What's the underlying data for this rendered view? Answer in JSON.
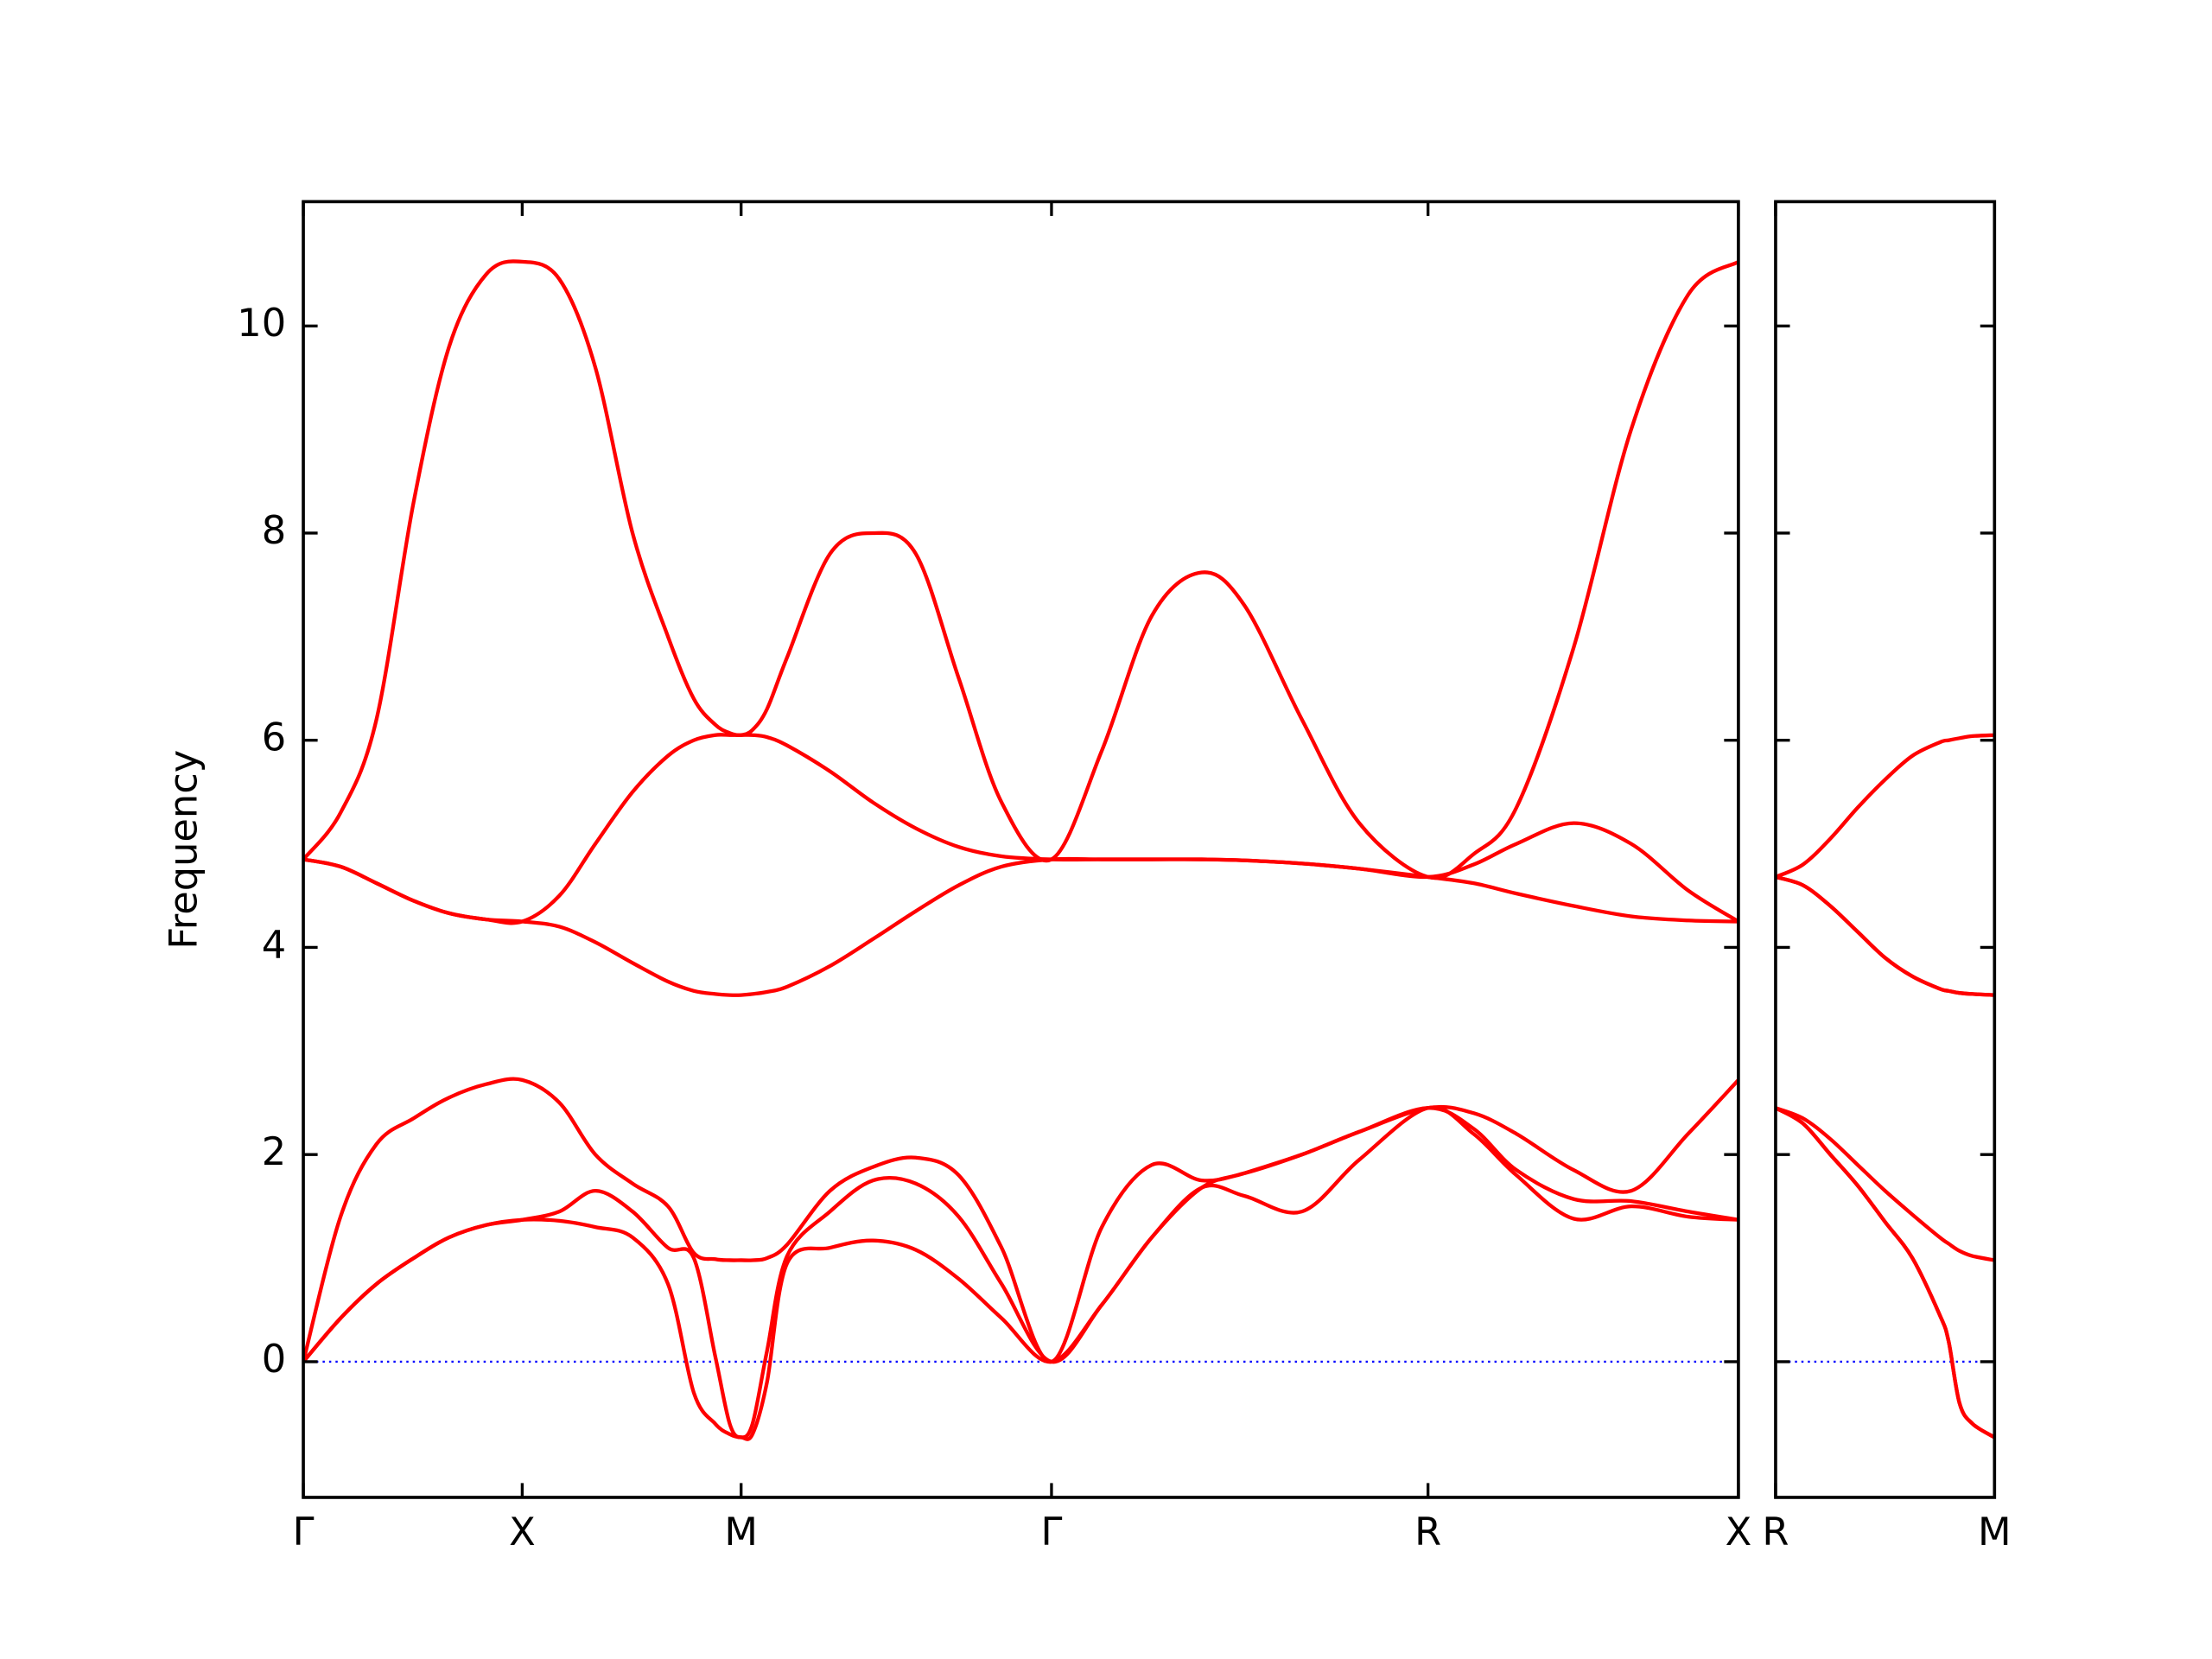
{
  "chart_data": [
    {
      "type": "line",
      "ylabel": "Frequency",
      "x": [
        0,
        0.085,
        0.167,
        0.252,
        0.333,
        0.418,
        0.5,
        0.585,
        0.667,
        0.752,
        0.833,
        0.892,
        0.941,
        0.974,
        1.0,
        1.026,
        1.059,
        1.105,
        1.203,
        1.301,
        1.399,
        1.497,
        1.595,
        1.709,
        1.824,
        1.938,
        2.052,
        2.15,
        2.281,
        2.412,
        2.569,
        2.673,
        2.771,
        2.902,
        3.033,
        3.163,
        3.278
      ],
      "series": [
        {
          "color": "#ff0000",
          "values": [
            4.85,
            5.3,
            6.2,
            8.3,
            9.8,
            10.5,
            10.62,
            10.45,
            9.6,
            8.0,
            7.0,
            6.4,
            6.15,
            6.07,
            6.05,
            6.1,
            6.3,
            6.8,
            7.8,
            8.0,
            7.8,
            6.6,
            5.4,
            4.85,
            5.9,
            7.2,
            7.62,
            7.3,
            6.2,
            5.2,
            4.68,
            4.9,
            5.35,
            6.9,
            9.0,
            10.3,
            10.62
          ]
        },
        {
          "color": "#ff0000",
          "values": [
            4.85,
            4.78,
            4.62,
            4.45,
            4.33,
            4.27,
            4.25,
            4.5,
            5.0,
            5.5,
            5.85,
            6.0,
            6.05,
            6.05,
            6.05,
            6.05,
            6.03,
            5.95,
            5.7,
            5.4,
            5.15,
            4.97,
            4.88,
            4.85,
            4.85,
            4.85,
            4.85,
            4.84,
            4.81,
            4.76,
            4.68,
            4.8,
            5.0,
            5.2,
            5.0,
            4.55,
            4.25
          ]
        },
        {
          "color": "#ff0000",
          "values": [
            4.85,
            4.78,
            4.62,
            4.45,
            4.33,
            4.27,
            4.25,
            4.2,
            4.05,
            3.85,
            3.67,
            3.58,
            3.55,
            3.54,
            3.54,
            3.55,
            3.57,
            3.62,
            3.82,
            4.08,
            4.35,
            4.6,
            4.78,
            4.85,
            4.85,
            4.85,
            4.85,
            4.84,
            4.81,
            4.76,
            4.68,
            4.62,
            4.52,
            4.4,
            4.3,
            4.26,
            4.25
          ]
        },
        {
          "color": "#ff0000",
          "values": [
            0,
            1.4,
            2.1,
            2.35,
            2.55,
            2.68,
            2.72,
            2.5,
            2.0,
            1.72,
            1.5,
            1.05,
            0.99,
            0.98,
            0.98,
            0.98,
            1.0,
            1.13,
            1.65,
            1.88,
            1.97,
            1.8,
            1.1,
            0,
            1.3,
            1.9,
            1.75,
            1.82,
            2.0,
            2.22,
            2.45,
            2.4,
            2.2,
            1.85,
            1.65,
            2.2,
            2.72
          ]
        },
        {
          "color": "#ff0000",
          "values": [
            0,
            0.42,
            0.75,
            1.0,
            1.2,
            1.32,
            1.37,
            1.45,
            1.65,
            1.45,
            1.1,
            1.0,
            0.05,
            -0.6,
            -0.73,
            -0.6,
            0.1,
            1.02,
            1.45,
            1.75,
            1.72,
            1.4,
            0.75,
            0,
            0.55,
            1.2,
            1.68,
            1.82,
            2.0,
            2.22,
            2.45,
            2.25,
            1.85,
            1.57,
            1.55,
            1.45,
            1.37
          ]
        },
        {
          "color": "#ff0000",
          "values": [
            0,
            0.42,
            0.75,
            1.0,
            1.2,
            1.32,
            1.37,
            1.36,
            1.3,
            1.2,
            0.75,
            -0.3,
            -0.6,
            -0.7,
            -0.73,
            -0.7,
            -0.2,
            0.95,
            1.1,
            1.17,
            1.08,
            0.8,
            0.42,
            0,
            0.55,
            1.2,
            1.68,
            1.6,
            1.45,
            1.95,
            2.45,
            2.2,
            1.8,
            1.38,
            1.5,
            1.4,
            1.37
          ]
        }
      ],
      "xlim": [
        0,
        3.278
      ],
      "xticks": [
        {
          "value": 0,
          "label": "Γ"
        },
        {
          "value": 0.5,
          "label": "X"
        },
        {
          "value": 1.0,
          "label": "M"
        },
        {
          "value": 1.709,
          "label": "Γ"
        },
        {
          "value": 2.569,
          "label": "R"
        },
        {
          "value": 3.278,
          "label": "X"
        }
      ],
      "ylim": [
        -1.31,
        11.2
      ],
      "yticks": [
        0,
        2,
        4,
        6,
        8,
        10
      ],
      "hline": {
        "y": 0,
        "color": "#0000ff",
        "linestyle": "dotted"
      }
    },
    {
      "type": "line",
      "x": [
        0,
        0.0625,
        0.125,
        0.1875,
        0.25,
        0.3125,
        0.375,
        0.395,
        0.42,
        0.45,
        0.5
      ],
      "series": [
        {
          "color": "#ff0000",
          "values": [
            4.68,
            4.8,
            5.05,
            5.35,
            5.62,
            5.85,
            5.98,
            6.0,
            6.02,
            6.04,
            6.05
          ]
        },
        {
          "color": "#ff0000",
          "values": [
            4.68,
            4.6,
            4.4,
            4.15,
            3.9,
            3.72,
            3.6,
            3.58,
            3.56,
            3.55,
            3.54
          ]
        },
        {
          "color": "#ff0000",
          "values": [
            4.68,
            4.6,
            4.4,
            4.15,
            3.9,
            3.72,
            3.6,
            3.58,
            3.56,
            3.55,
            3.54
          ]
        },
        {
          "color": "#ff0000",
          "values": [
            2.45,
            2.35,
            2.15,
            1.9,
            1.65,
            1.42,
            1.2,
            1.14,
            1.07,
            1.02,
            0.98
          ]
        },
        {
          "color": "#ff0000",
          "values": [
            2.45,
            2.3,
            2.0,
            1.7,
            1.35,
            1.0,
            0.45,
            0.2,
            -0.4,
            -0.6,
            -0.73
          ]
        },
        {
          "color": "#ff0000",
          "values": [
            2.45,
            2.3,
            2.0,
            1.7,
            1.35,
            1.0,
            0.45,
            0.2,
            -0.4,
            -0.6,
            -0.73
          ]
        }
      ],
      "xlim": [
        0,
        0.5
      ],
      "xticks": [
        {
          "value": 0,
          "label": "R"
        },
        {
          "value": 0.5,
          "label": "M"
        }
      ],
      "ylim": [
        -1.31,
        11.2
      ],
      "yticks": [
        0,
        2,
        4,
        6,
        8,
        10
      ],
      "hline": {
        "y": 0,
        "color": "#0000ff",
        "linestyle": "dotted"
      }
    }
  ]
}
